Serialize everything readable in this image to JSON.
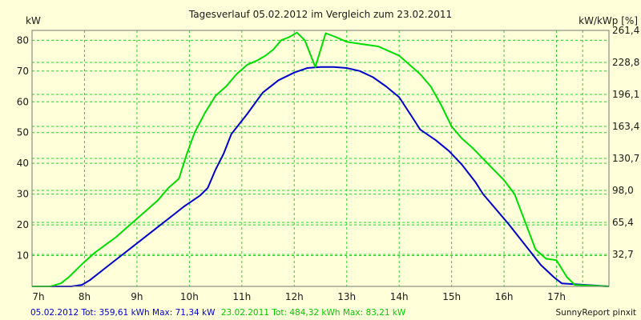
{
  "chart_data": {
    "type": "line",
    "title": "Tagesverlauf 05.02.2012 im Vergleich zum 23.02.2011",
    "ylabel_left": "kW",
    "ylabel_right": "kW/kWp [%]",
    "xlim": [
      7,
      18
    ],
    "ylim": [
      0,
      83.21
    ],
    "x_ticks": [
      "7h",
      "8h",
      "9h",
      "10h",
      "11h",
      "12h",
      "13h",
      "14h",
      "15h",
      "16h",
      "17h"
    ],
    "y_ticks_left": [
      "10",
      "20",
      "30",
      "40",
      "50",
      "60",
      "70",
      "80"
    ],
    "y_ticks_right": [
      "32,7",
      "65,4",
      "98,0",
      "130,7",
      "163,4",
      "196,1",
      "228,8",
      "261,4"
    ],
    "grid": true,
    "series": [
      {
        "name": "05.02.2012",
        "color": "#0000cc",
        "x": [
          7.0,
          7.75,
          7.95,
          8.1,
          8.4,
          8.7,
          9.0,
          9.3,
          9.6,
          9.9,
          10.2,
          10.35,
          10.5,
          10.65,
          10.8,
          11.1,
          11.4,
          11.7,
          12.0,
          12.25,
          12.5,
          12.75,
          13.0,
          13.25,
          13.5,
          13.75,
          14.0,
          14.25,
          14.4,
          14.7,
          14.95,
          15.2,
          15.45,
          15.6,
          15.8,
          16.1,
          16.4,
          16.7,
          16.95,
          17.1,
          18.0
        ],
        "y": [
          0,
          0,
          0.5,
          2,
          6,
          10,
          14,
          18,
          22,
          26,
          29.5,
          32,
          38,
          43,
          49.5,
          56,
          63,
          67,
          69.5,
          71,
          71.3,
          71.3,
          71,
          70,
          68,
          65,
          61.5,
          55,
          51,
          47.5,
          44,
          39.5,
          34,
          30,
          26,
          20,
          13.5,
          7,
          3,
          1,
          0
        ]
      },
      {
        "name": "23.02.2011",
        "color": "#00dd00",
        "x": [
          7.0,
          7.35,
          7.55,
          7.7,
          7.85,
          8.0,
          8.2,
          8.4,
          8.6,
          8.8,
          9.0,
          9.2,
          9.4,
          9.6,
          9.8,
          9.95,
          10.1,
          10.3,
          10.5,
          10.7,
          10.9,
          11.1,
          11.3,
          11.45,
          11.6,
          11.75,
          11.9,
          12.05,
          12.2,
          12.4,
          12.6,
          12.8,
          13.0,
          13.2,
          13.4,
          13.6,
          13.8,
          14.0,
          14.2,
          14.4,
          14.6,
          14.8,
          15.0,
          15.2,
          15.4,
          15.6,
          15.8,
          16.0,
          16.2,
          16.4,
          16.6,
          16.8,
          17.0,
          17.2,
          17.35,
          18.0
        ],
        "y": [
          0,
          0,
          1,
          3,
          5.5,
          8,
          11,
          13.5,
          16,
          19,
          22,
          25,
          28,
          32,
          35,
          43,
          50,
          56.5,
          62,
          65,
          69,
          72,
          73.5,
          75,
          77,
          80,
          81,
          82.5,
          80,
          71.3,
          82.3,
          81,
          79.5,
          79,
          78.5,
          78,
          76.5,
          75,
          72,
          69,
          65,
          59,
          52,
          48,
          45,
          41.5,
          38,
          34.5,
          30,
          21,
          12,
          9,
          8.5,
          3,
          0.5,
          0
        ]
      }
    ]
  },
  "footer": {
    "legend1": "05.02.2012 Tot: 359,61 kWh Max: 71,34 kW",
    "legend2": "23.02.2011 Tot: 484,32 kWh Max: 83,21 kW",
    "credit": "SunnyReport pinxit"
  }
}
